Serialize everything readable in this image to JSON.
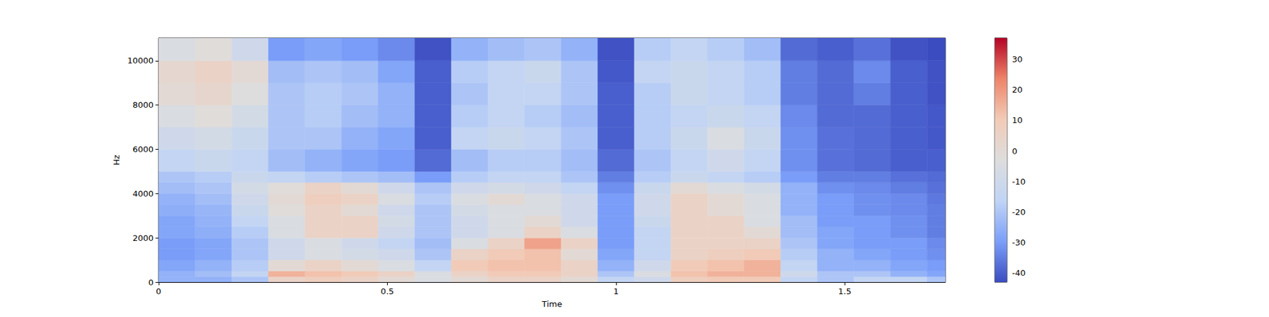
{
  "chart_data": {
    "type": "heatmap",
    "xlabel": "Time",
    "ylabel": "Hz",
    "xlim": [
      0,
      1.72
    ],
    "xticks": [
      0,
      0.5,
      1,
      1.5
    ],
    "ylim": [
      0,
      11025
    ],
    "yticks": [
      0,
      2000,
      4000,
      6000,
      8000,
      10000
    ],
    "x_bins": [
      0,
      0.08,
      0.16,
      0.24,
      0.32,
      0.4,
      0.48,
      0.56,
      0.64,
      0.72,
      0.8,
      0.88,
      0.96,
      1.04,
      1.12,
      1.2,
      1.28,
      1.36,
      1.44,
      1.52,
      1.6,
      1.68,
      1.72
    ],
    "y_bins": [
      0,
      250,
      500,
      1000,
      1500,
      2000,
      2500,
      3000,
      3500,
      4000,
      4500,
      5000,
      6000,
      7000,
      8000,
      9000,
      10000,
      11025
    ],
    "cells": [
      [
        -25,
        -25,
        -20,
        5,
        8,
        5,
        0,
        -5,
        0,
        5,
        5,
        0,
        -15,
        -10,
        8,
        10,
        10,
        -15,
        -20,
        -15,
        -15,
        -20
      ],
      [
        -25,
        -22,
        -15,
        15,
        12,
        10,
        5,
        -5,
        5,
        10,
        10,
        5,
        -20,
        -5,
        12,
        15,
        15,
        -10,
        -20,
        -20,
        -25,
        -28
      ],
      [
        -28,
        -25,
        -18,
        0,
        5,
        0,
        -5,
        -15,
        10,
        12,
        12,
        5,
        -25,
        -10,
        10,
        12,
        15,
        -15,
        -25,
        -25,
        -28,
        -30
      ],
      [
        -30,
        -28,
        -20,
        -10,
        -5,
        -8,
        -10,
        -20,
        5,
        10,
        12,
        0,
        -28,
        -15,
        5,
        8,
        10,
        -18,
        -25,
        -28,
        -30,
        -32
      ],
      [
        -30,
        -28,
        -20,
        -10,
        -5,
        -10,
        -15,
        -22,
        -5,
        5,
        18,
        5,
        -30,
        -15,
        5,
        5,
        5,
        -20,
        -28,
        -30,
        -30,
        -33
      ],
      [
        -28,
        -26,
        -18,
        -5,
        5,
        5,
        -10,
        -20,
        -10,
        -5,
        5,
        -5,
        -30,
        -15,
        5,
        5,
        0,
        -22,
        -28,
        -30,
        -32,
        -35
      ],
      [
        -28,
        -25,
        -15,
        -5,
        5,
        5,
        -8,
        -20,
        -10,
        -5,
        0,
        -10,
        -30,
        -12,
        5,
        5,
        -5,
        -22,
        -30,
        -30,
        -32,
        -35
      ],
      [
        -26,
        -24,
        -12,
        -2,
        5,
        0,
        -10,
        -20,
        -8,
        -5,
        -5,
        -10,
        -30,
        -10,
        5,
        0,
        -5,
        -25,
        -30,
        -32,
        -33,
        -35
      ],
      [
        -25,
        -22,
        -10,
        0,
        8,
        5,
        -5,
        -18,
        -5,
        0,
        -5,
        -10,
        -30,
        -10,
        5,
        0,
        -5,
        -25,
        -30,
        -32,
        -33,
        -36
      ],
      [
        -22,
        -20,
        -8,
        -2,
        5,
        0,
        -10,
        -20,
        -10,
        -8,
        -10,
        -15,
        -32,
        -12,
        0,
        -5,
        -8,
        -25,
        -32,
        -33,
        -35,
        -37
      ],
      [
        -20,
        -18,
        -12,
        -15,
        -18,
        -20,
        -22,
        -30,
        -18,
        -15,
        -15,
        -20,
        -35,
        -18,
        -12,
        -15,
        -18,
        -30,
        -35,
        -35,
        -37,
        -38
      ],
      [
        -15,
        -12,
        -15,
        -22,
        -25,
        -28,
        -30,
        -38,
        -22,
        -18,
        -18,
        -22,
        -38,
        -20,
        -15,
        -10,
        -15,
        -32,
        -37,
        -38,
        -40,
        -40
      ],
      [
        -10,
        -8,
        -12,
        -20,
        -20,
        -25,
        -28,
        -40,
        -15,
        -12,
        -15,
        -20,
        -40,
        -18,
        -12,
        -5,
        -12,
        -32,
        -37,
        -38,
        -40,
        -41
      ],
      [
        -5,
        -2,
        -8,
        -20,
        -18,
        -22,
        -25,
        -40,
        -18,
        -15,
        -18,
        -22,
        -40,
        -18,
        -15,
        -12,
        -15,
        -33,
        -38,
        -38,
        -40,
        -41
      ],
      [
        0,
        3,
        -3,
        -20,
        -18,
        -20,
        -25,
        -40,
        -20,
        -15,
        -15,
        -20,
        -40,
        -18,
        -12,
        -15,
        -18,
        -35,
        -38,
        -35,
        -40,
        -42
      ],
      [
        2,
        5,
        0,
        -22,
        -20,
        -22,
        -28,
        -40,
        -18,
        -15,
        -12,
        -20,
        -41,
        -15,
        -12,
        -15,
        -18,
        -35,
        -38,
        -33,
        -40,
        -42
      ],
      [
        -5,
        -2,
        -10,
        -30,
        -28,
        -30,
        -33,
        -42,
        -25,
        -22,
        -20,
        -25,
        -42,
        -18,
        -15,
        -18,
        -22,
        -38,
        -40,
        -37,
        -42,
        -43
      ]
    ],
    "colorbar": {
      "range": [
        -43,
        37
      ],
      "ticks": [
        -40,
        -30,
        -20,
        -10,
        0,
        10,
        20,
        30
      ]
    }
  }
}
